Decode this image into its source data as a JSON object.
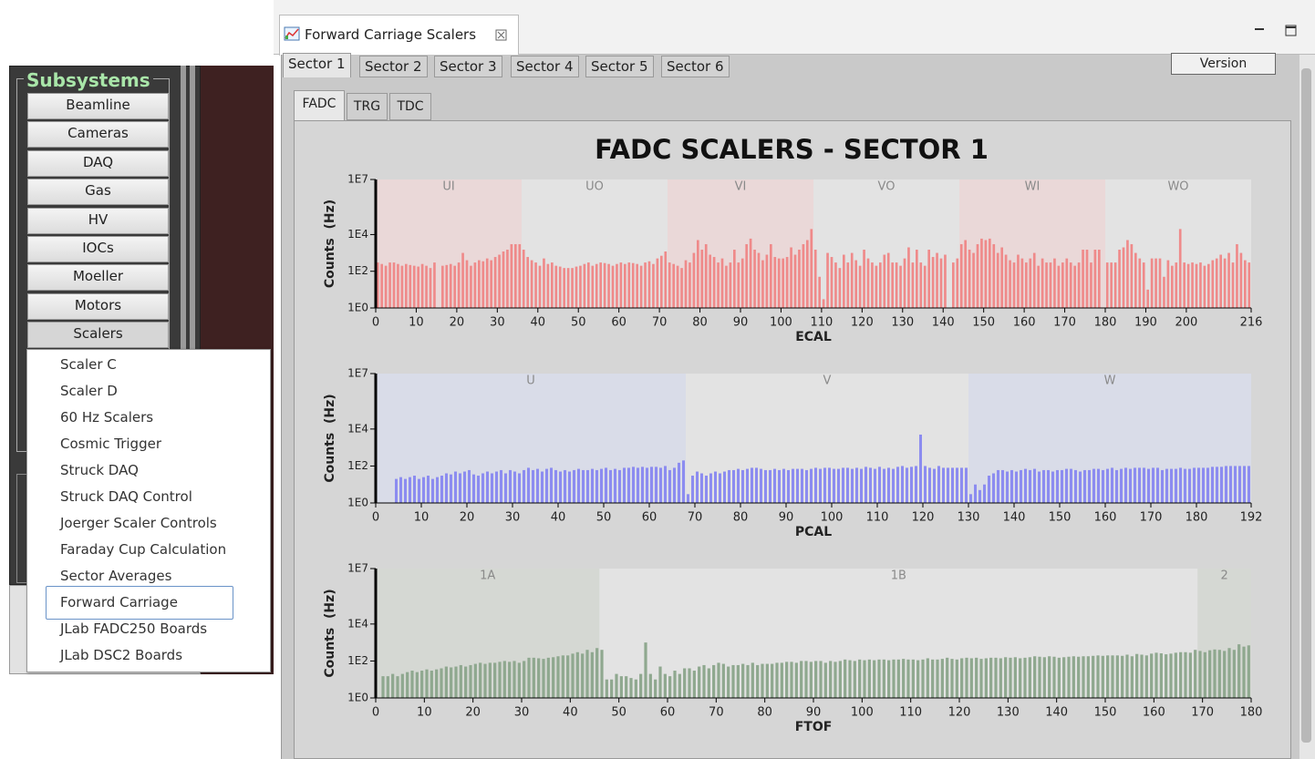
{
  "window_tab": {
    "title": "Forward Carriage Scalers"
  },
  "sidebar": {
    "title": "Subsystems",
    "buttons": [
      "Beamline",
      "Cameras",
      "DAQ",
      "Gas",
      "HV",
      "IOCs",
      "Moeller",
      "Motors",
      "Scalers"
    ]
  },
  "menu": {
    "items": [
      "Scaler C",
      "Scaler D",
      "60 Hz Scalers",
      "Cosmic Trigger",
      "Struck DAQ",
      "Struck DAQ Control",
      "Joerger Scaler Controls",
      "Faraday Cup Calculation",
      "Sector Averages",
      "Forward Carriage",
      "JLab FADC250 Boards",
      "JLab DSC2 Boards"
    ]
  },
  "sector_tabs": [
    "Sector 1",
    "Sector 2",
    "Sector 3",
    "Sector 4",
    "Sector 5",
    "Sector 6"
  ],
  "version_button": "Version",
  "sub_tabs": [
    "FADC",
    "TRG",
    "TDC"
  ],
  "panel_title": "FADC SCALERS - SECTOR 1",
  "chart_data": [
    {
      "type": "bar",
      "log_y": true,
      "color": "#ef8a8a",
      "xlabel": "ECAL",
      "ylabel": "Counts  (Hz)",
      "xlim": [
        0,
        216
      ],
      "xticks": [
        0,
        10,
        20,
        30,
        40,
        50,
        60,
        70,
        80,
        90,
        100,
        110,
        120,
        130,
        140,
        150,
        160,
        170,
        180,
        190,
        200,
        216
      ],
      "ylim": [
        1,
        10000000
      ],
      "yticks": [
        {
          "value": 1,
          "label": "1E0"
        },
        {
          "value": 100,
          "label": "1E2"
        },
        {
          "value": 10000,
          "label": "1E4"
        },
        {
          "value": 10000000,
          "label": "1E7"
        }
      ],
      "regions": [
        {
          "label": "UI",
          "start": 0,
          "end": 36,
          "color": "#ead8d8"
        },
        {
          "label": "UO",
          "start": 36,
          "end": 72,
          "color": "#e3e3e3"
        },
        {
          "label": "VI",
          "start": 72,
          "end": 108,
          "color": "#ead8d8"
        },
        {
          "label": "VO",
          "start": 108,
          "end": 144,
          "color": "#e3e3e3"
        },
        {
          "label": "WI",
          "start": 144,
          "end": 180,
          "color": "#ead8d8"
        },
        {
          "label": "WO",
          "start": 180,
          "end": 216,
          "color": "#e3e3e3"
        }
      ],
      "values": [
        300,
        250,
        200,
        300,
        300,
        250,
        200,
        250,
        220,
        200,
        180,
        250,
        200,
        150,
        300,
        null,
        200,
        220,
        250,
        200,
        300,
        1000,
        400,
        200,
        300,
        400,
        350,
        500,
        400,
        600,
        800,
        1200,
        1500,
        3000,
        3000,
        3000,
        1500,
        600,
        400,
        300,
        200,
        500,
        250,
        300,
        200,
        180,
        150,
        150,
        150,
        180,
        200,
        250,
        300,
        200,
        250,
        300,
        280,
        250,
        200,
        250,
        300,
        250,
        300,
        280,
        250,
        200,
        300,
        350,
        250,
        500,
        700,
        1200,
        300,
        250,
        200,
        150,
        400,
        300,
        1000,
        5000,
        1500,
        3000,
        800,
        600,
        300,
        500,
        200,
        300,
        1500,
        300,
        500,
        3000,
        6000,
        1500,
        1000,
        400,
        800,
        3000,
        600,
        500,
        500,
        600,
        2000,
        800,
        1500,
        3000,
        5000,
        20000,
        1500,
        50,
        3,
        1000,
        600,
        300,
        150,
        800,
        300,
        1000,
        400,
        200,
        1500,
        500,
        300,
        200,
        300,
        800,
        1000,
        300,
        300,
        200,
        500,
        2000,
        300,
        1500,
        300,
        200,
        1500,
        600,
        1000,
        500,
        800,
        null,
        300,
        500,
        3000,
        5000,
        1500,
        1000,
        3000,
        6000,
        5000,
        6000,
        3000,
        1000,
        2000,
        800,
        400,
        300,
        800,
        500,
        300,
        500,
        1000,
        200,
        500,
        300,
        300,
        500,
        200,
        300,
        500,
        300,
        200,
        300,
        1500,
        1500,
        300,
        1500,
        1500,
        null,
        300,
        300,
        300,
        1500,
        2000,
        5000,
        3000,
        1000,
        500,
        300,
        10,
        500,
        500,
        500,
        50,
        400,
        200,
        300,
        20000,
        300,
        250,
        300,
        250,
        300,
        200,
        250,
        400,
        500,
        800,
        500,
        1000,
        300,
        3000,
        1000,
        400,
        300
      ]
    },
    {
      "type": "bar",
      "log_y": true,
      "color": "#8c8cf0",
      "xlabel": "PCAL",
      "ylabel": "Counts  (Hz)",
      "xlim": [
        0,
        192
      ],
      "xticks": [
        0,
        10,
        20,
        30,
        40,
        50,
        60,
        70,
        80,
        90,
        100,
        110,
        120,
        130,
        140,
        150,
        160,
        170,
        180,
        192
      ],
      "ylim": [
        1,
        10000000
      ],
      "yticks": [
        {
          "value": 1,
          "label": "1E0"
        },
        {
          "value": 100,
          "label": "1E2"
        },
        {
          "value": 10000,
          "label": "1E4"
        },
        {
          "value": 10000000,
          "label": "1E7"
        }
      ],
      "regions": [
        {
          "label": "U",
          "start": 0,
          "end": 68,
          "color": "#d9dce8"
        },
        {
          "label": "V",
          "start": 68,
          "end": 130,
          "color": "#e3e3e3"
        },
        {
          "label": "W",
          "start": 130,
          "end": 192,
          "color": "#d9dce8"
        }
      ],
      "values": [
        null,
        null,
        null,
        null,
        20,
        25,
        20,
        25,
        30,
        20,
        25,
        30,
        20,
        25,
        30,
        40,
        35,
        50,
        40,
        50,
        60,
        35,
        30,
        40,
        50,
        40,
        50,
        60,
        40,
        60,
        50,
        40,
        60,
        80,
        60,
        70,
        50,
        70,
        80,
        60,
        50,
        60,
        50,
        60,
        70,
        60,
        60,
        70,
        60,
        70,
        80,
        60,
        70,
        60,
        80,
        80,
        90,
        80,
        90,
        80,
        90,
        90,
        80,
        100,
        60,
        80,
        150,
        200,
        3,
        30,
        50,
        40,
        30,
        40,
        50,
        40,
        50,
        60,
        60,
        70,
        60,
        70,
        80,
        80,
        70,
        60,
        60,
        70,
        60,
        70,
        60,
        70,
        70,
        70,
        60,
        70,
        80,
        70,
        80,
        80,
        70,
        70,
        80,
        80,
        70,
        80,
        70,
        90,
        80,
        70,
        90,
        70,
        80,
        70,
        90,
        100,
        80,
        90,
        100,
        5000,
        100,
        80,
        70,
        100,
        80,
        80,
        80,
        80,
        80,
        80,
        3,
        10,
        5,
        10,
        30,
        40,
        60,
        60,
        50,
        60,
        50,
        60,
        70,
        60,
        70,
        50,
        60,
        60,
        50,
        60,
        60,
        70,
        70,
        60,
        50,
        60,
        60,
        70,
        70,
        60,
        70,
        80,
        60,
        70,
        80,
        70,
        80,
        80,
        80,
        70,
        80,
        80,
        60,
        70,
        70,
        70,
        80,
        70,
        70,
        80,
        80,
        80,
        80,
        90,
        90,
        90,
        100,
        100,
        100,
        100,
        100,
        100
      ]
    },
    {
      "type": "bar",
      "log_y": true,
      "color": "#8fa88f",
      "xlabel": "FTOF",
      "ylabel": "Counts  (Hz)",
      "xlim": [
        0,
        180
      ],
      "xticks": [
        0,
        10,
        20,
        30,
        40,
        50,
        60,
        70,
        80,
        90,
        100,
        110,
        120,
        130,
        140,
        150,
        160,
        170,
        180
      ],
      "ylim": [
        1,
        10000000
      ],
      "yticks": [
        {
          "value": 1,
          "label": "1E0"
        },
        {
          "value": 100,
          "label": "1E2"
        },
        {
          "value": 10000,
          "label": "1E4"
        },
        {
          "value": 10000000,
          "label": "1E7"
        }
      ],
      "regions": [
        {
          "label": "1A",
          "start": 0,
          "end": 46,
          "color": "#d5d8d3"
        },
        {
          "label": "1B",
          "start": 46,
          "end": 169,
          "color": "#e3e3e3"
        },
        {
          "label": "2",
          "start": 169,
          "end": 180,
          "color": "#d5d8d3"
        }
      ],
      "values": [
        null,
        15,
        15,
        20,
        15,
        20,
        25,
        30,
        25,
        30,
        35,
        30,
        35,
        40,
        50,
        45,
        50,
        60,
        50,
        60,
        70,
        80,
        70,
        80,
        80,
        90,
        100,
        90,
        100,
        80,
        100,
        150,
        150,
        140,
        130,
        150,
        160,
        180,
        200,
        200,
        250,
        300,
        250,
        400,
        300,
        500,
        400,
        10,
        10,
        20,
        15,
        15,
        12,
        10,
        20,
        1000,
        20,
        10,
        50,
        20,
        15,
        30,
        20,
        40,
        40,
        30,
        50,
        60,
        40,
        60,
        80,
        70,
        50,
        60,
        60,
        70,
        60,
        80,
        60,
        70,
        70,
        70,
        80,
        80,
        90,
        90,
        80,
        100,
        100,
        90,
        100,
        100,
        80,
        100,
        90,
        100,
        120,
        110,
        100,
        120,
        110,
        120,
        110,
        120,
        120,
        110,
        120,
        120,
        130,
        120,
        120,
        110,
        120,
        140,
        120,
        120,
        130,
        150,
        130,
        120,
        140,
        150,
        140,
        150,
        130,
        140,
        150,
        150,
        140,
        160,
        150,
        160,
        140,
        150,
        160,
        180,
        170,
        160,
        180,
        170,
        150,
        160,
        170,
        180,
        170,
        180,
        180,
        190,
        200,
        190,
        200,
        200,
        200,
        190,
        220,
        180,
        240,
        220,
        200,
        250,
        280,
        260,
        230,
        250,
        280,
        300,
        300,
        280,
        400,
        350,
        300,
        380,
        420,
        400,
        350,
        500,
        400,
        800,
        600,
        700
      ]
    }
  ]
}
